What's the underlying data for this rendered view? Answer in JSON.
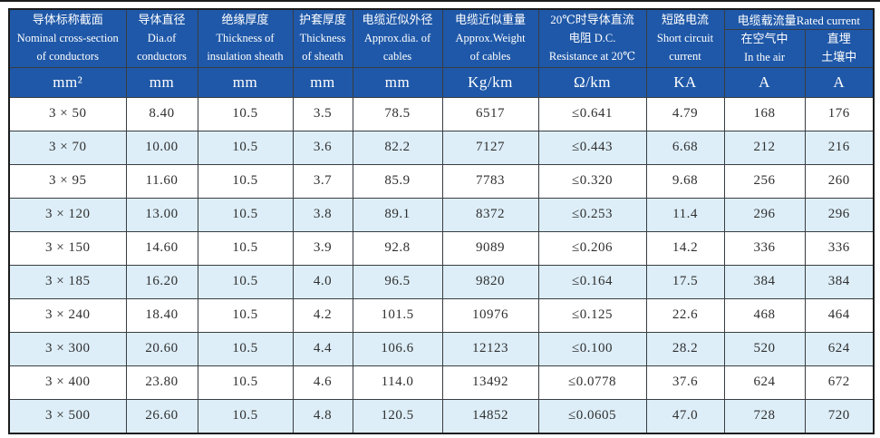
{
  "colors": {
    "header_blue": "#1f58a8",
    "row_stripe_blue": "#ddeef8",
    "grid_line": "#383d42",
    "outer_border": "#1c1c1c",
    "header_text": "#ffffff",
    "body_text": "#2f2f2f"
  },
  "header": {
    "cols": [
      {
        "lines": [
          "导体标称截面",
          "Nominal cross-section",
          "of conductors"
        ]
      },
      {
        "lines": [
          "导体直径",
          "Dia.of",
          "conductors"
        ]
      },
      {
        "lines": [
          "绝缘厚度",
          "Thickness of",
          "insulation sheath"
        ]
      },
      {
        "lines": [
          "护套厚度",
          "Thickness",
          "of sheath"
        ]
      },
      {
        "lines": [
          "电缆近似外径",
          "Approx.dia. of",
          "cables"
        ]
      },
      {
        "lines": [
          "电缆近似重量",
          "Approx.Weight",
          "of cables"
        ]
      },
      {
        "lines": [
          "20℃时导体直流",
          "电阻 D.C.",
          "Resistance at 20℃"
        ]
      },
      {
        "lines": [
          "短路电流",
          "Short circuit",
          "current"
        ]
      }
    ],
    "group": {
      "title": "电缆载流量Rated current",
      "sub": [
        {
          "lines": [
            "在空气中",
            "In the air"
          ]
        },
        {
          "lines": [
            "直埋",
            "土壤中"
          ]
        }
      ]
    },
    "units": [
      "mm²",
      "mm",
      "mm",
      "mm",
      "mm",
      "Kg/km",
      "Ω/km",
      "KA",
      "A",
      "A"
    ]
  },
  "rows": [
    [
      "3 × 50",
      "8.40",
      "10.5",
      "3.5",
      "78.5",
      "6517",
      "≤0.641",
      "4.79",
      "168",
      "176"
    ],
    [
      "3 × 70",
      "10.00",
      "10.5",
      "3.6",
      "82.2",
      "7127",
      "≤0.443",
      "6.68",
      "212",
      "216"
    ],
    [
      "3 × 95",
      "11.60",
      "10.5",
      "3.7",
      "85.9",
      "7783",
      "≤0.320",
      "9.68",
      "256",
      "260"
    ],
    [
      "3 × 120",
      "13.00",
      "10.5",
      "3.8",
      "89.1",
      "8372",
      "≤0.253",
      "11.4",
      "296",
      "296"
    ],
    [
      "3 × 150",
      "14.60",
      "10.5",
      "3.9",
      "92.8",
      "9089",
      "≤0.206",
      "14.2",
      "336",
      "336"
    ],
    [
      "3 × 185",
      "16.20",
      "10.5",
      "4.0",
      "96.5",
      "9820",
      "≤0.164",
      "17.5",
      "384",
      "384"
    ],
    [
      "3 × 240",
      "18.40",
      "10.5",
      "4.2",
      "101.5",
      "10976",
      "≤0.125",
      "22.6",
      "468",
      "464"
    ],
    [
      "3 × 300",
      "20.60",
      "10.5",
      "4.4",
      "106.6",
      "12123",
      "≤0.100",
      "28.2",
      "520",
      "624"
    ],
    [
      "3 × 400",
      "23.80",
      "10.5",
      "4.6",
      "114.0",
      "13492",
      "≤0.0778",
      "37.6",
      "624",
      "672"
    ],
    [
      "3 × 500",
      "26.60",
      "10.5",
      "4.8",
      "120.5",
      "14852",
      "≤0.0605",
      "47.0",
      "728",
      "720"
    ]
  ]
}
